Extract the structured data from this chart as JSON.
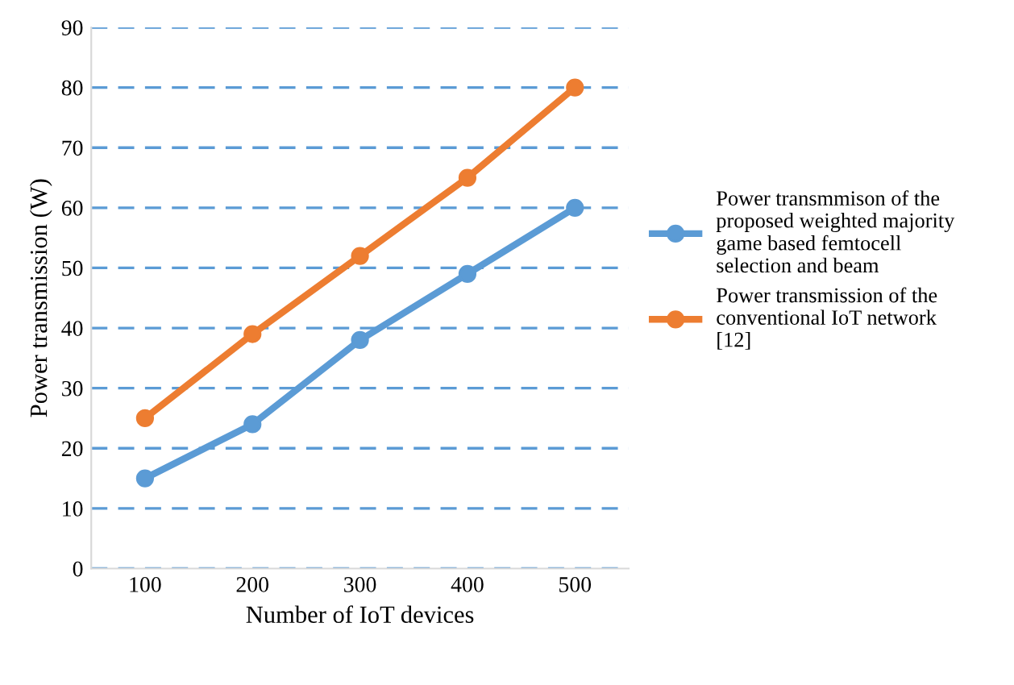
{
  "chart_data": {
    "type": "line",
    "xlabel": "Number of IoT devices",
    "ylabel": "Power transmission (W)",
    "categories": [
      "100",
      "200",
      "300",
      "400",
      "500"
    ],
    "series": [
      {
        "name": "Power transmmison of the proposed weighted majority game based femtocell selection and beam",
        "color": "#5b9bd5",
        "values": [
          15,
          24,
          38,
          49,
          60
        ]
      },
      {
        "name": "Power transmission of the conventional IoT network [12]",
        "color": "#ed7d31",
        "values": [
          25,
          39,
          52,
          65,
          80
        ]
      }
    ],
    "ylim": [
      0,
      90
    ],
    "yticks": [
      0,
      10,
      20,
      30,
      40,
      50,
      60,
      70,
      80,
      90
    ],
    "grid": "y",
    "legend": "right",
    "marker": "circle",
    "line_style": "solid"
  }
}
